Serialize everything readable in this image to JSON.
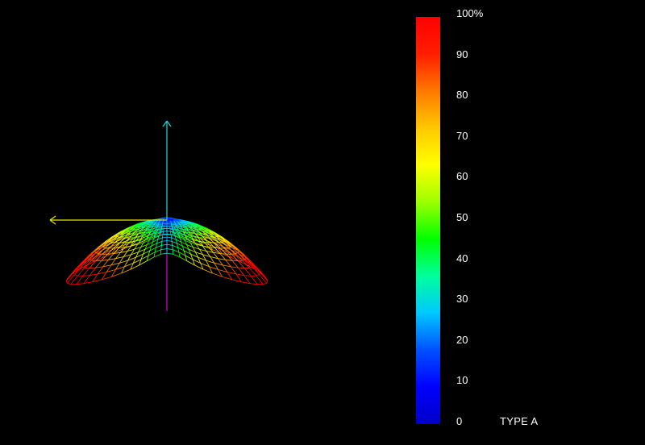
{
  "colorbar": {
    "ticks": [
      "0",
      "10",
      "20",
      "30",
      "40",
      "50",
      "60",
      "70",
      "80",
      "90",
      "100%"
    ],
    "min": 0,
    "max": 100,
    "colors": [
      "#0000c8",
      "#0000ff",
      "#0050ff",
      "#00c8ff",
      "#00ff9c",
      "#00ff00",
      "#9cff00",
      "#ffff00",
      "#ffc800",
      "#ff7800",
      "#ff1e00",
      "#ff0000"
    ]
  },
  "legend_label": "TYPE A",
  "axes": {
    "x_color": "#e6e600",
    "y_color": "#2ad6d6",
    "z_color": "#d400d4"
  },
  "surface": {
    "shape": "wireframe-saddle",
    "rings": 14,
    "meridians": 56
  }
}
